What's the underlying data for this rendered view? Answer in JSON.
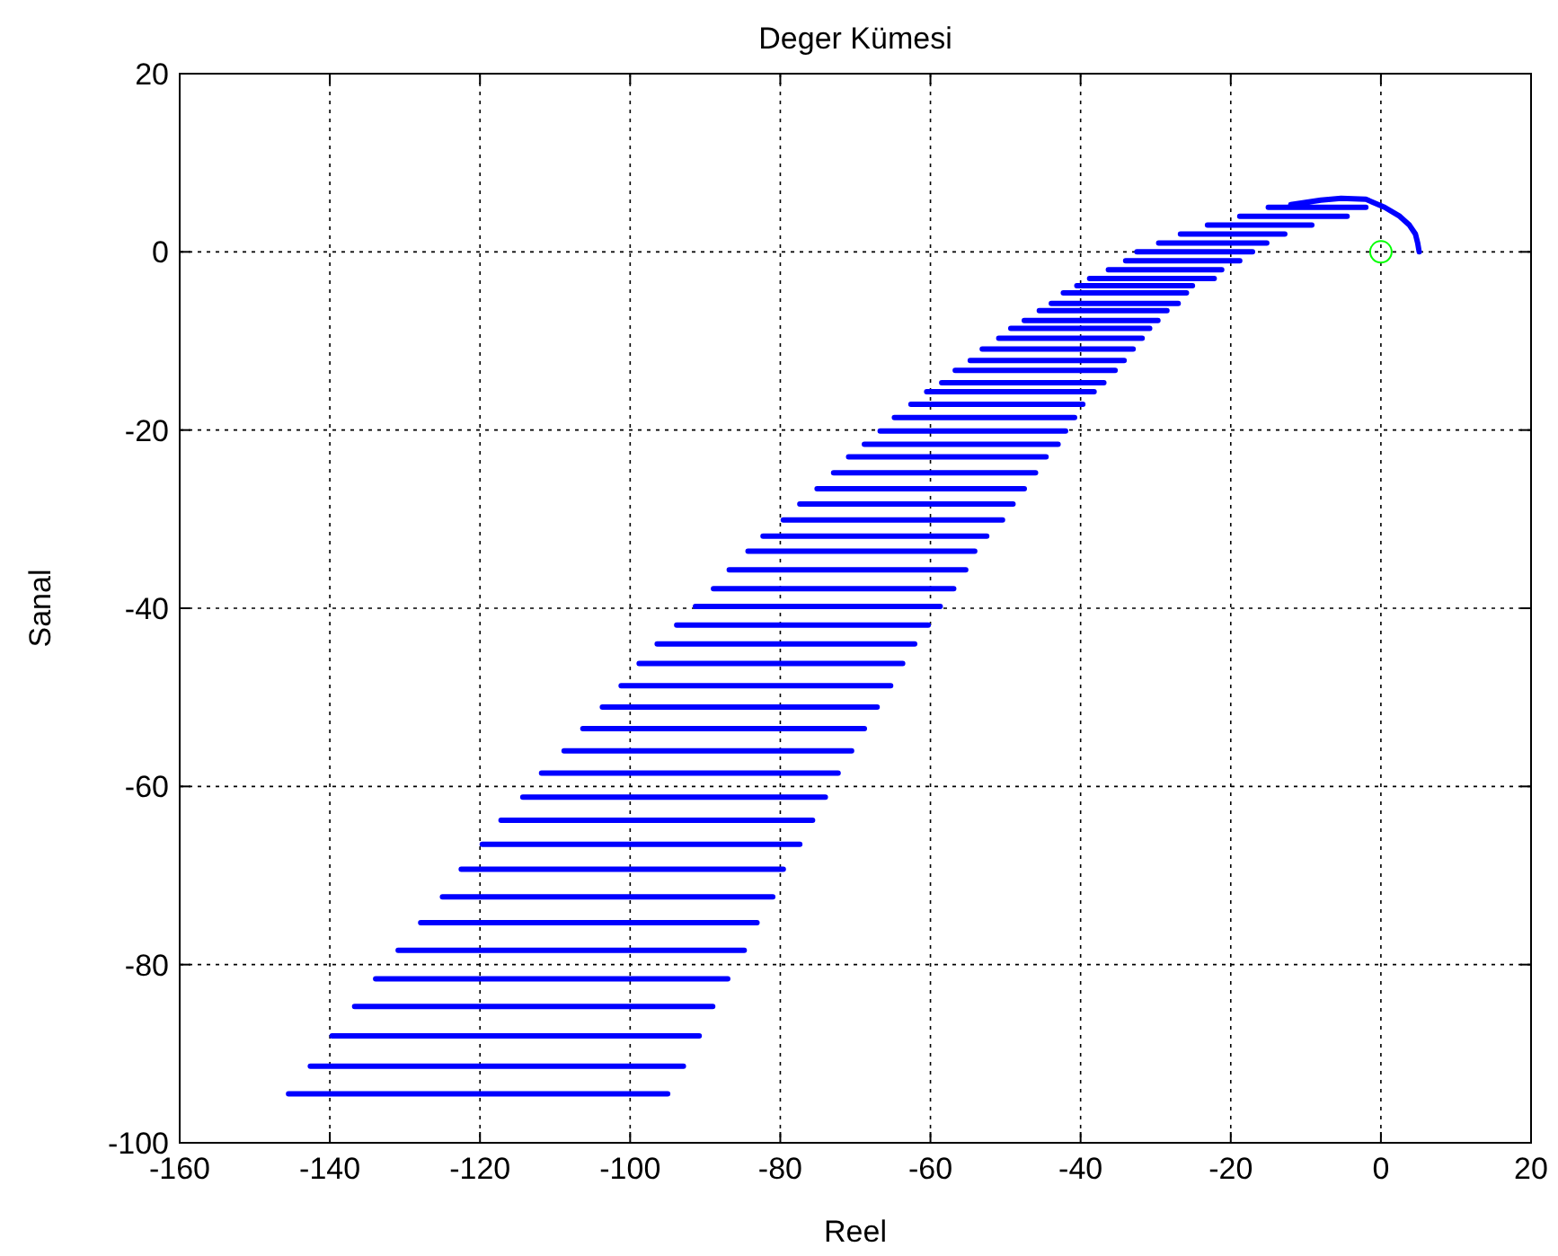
{
  "chart_data": {
    "type": "line",
    "title": "Deger Kümesi",
    "xlabel": "Reel",
    "ylabel": "Sanal",
    "xlim": [
      -160,
      20
    ],
    "ylim": [
      -100,
      20
    ],
    "xticks": [
      -160,
      -140,
      -120,
      -100,
      -80,
      -60,
      -40,
      -20,
      0,
      20
    ],
    "yticks": [
      -100,
      -80,
      -60,
      -40,
      -20,
      0,
      20
    ],
    "grid": true,
    "line_style": "solid",
    "series": [
      {
        "color": "#0000ff",
        "x": [
          -145.5,
          -95.0,
          null,
          -142.6,
          -92.9,
          null,
          -139.7,
          -90.8,
          null,
          -136.7,
          -89.0,
          null,
          -133.9,
          -87.0,
          null,
          -130.9,
          -84.8,
          null,
          -127.9,
          -83.1,
          null,
          -125.0,
          -81.0,
          null,
          -122.5,
          -79.6,
          null,
          -119.7,
          -77.4,
          null,
          -117.2,
          -75.7,
          null,
          -114.3,
          -74.0,
          null,
          -111.8,
          -72.3,
          null,
          -108.8,
          -70.5,
          null,
          -106.3,
          -68.8,
          null,
          -103.7,
          -67.1,
          null,
          -101.2,
          -65.3,
          null,
          -98.8,
          -63.7,
          null,
          -96.4,
          -62.1,
          null,
          -93.8,
          -60.3,
          null,
          -91.3,
          -58.7,
          null,
          -88.9,
          -56.9,
          null,
          -86.8,
          -55.3,
          null,
          -84.3,
          -54.1,
          null,
          -82.3,
          -52.5,
          null,
          -79.6,
          -50.4,
          null,
          -77.4,
          -49.0,
          null,
          -75.1,
          -47.5,
          null,
          -72.9,
          -46.0,
          null,
          -70.9,
          -44.6,
          null,
          -68.8,
          -43.0,
          null,
          -66.7,
          -42.0,
          null,
          -64.8,
          -40.8,
          null,
          -62.6,
          -39.7,
          null,
          -60.5,
          -38.2,
          null,
          -58.5,
          -36.9,
          null,
          -56.7,
          -35.4,
          null,
          -54.7,
          -34.2,
          null,
          -53.1,
          -33.0,
          null,
          -50.9,
          -31.8,
          null,
          -49.3,
          -30.8,
          null,
          -47.5,
          -29.7,
          null,
          -45.5,
          -28.5,
          null,
          -43.9,
          -27.0,
          null,
          -42.3,
          -25.9,
          null,
          -40.5,
          -25.1,
          null,
          -38.8,
          -22.2,
          null,
          -36.3,
          -21.2,
          null,
          -34.0,
          -18.8,
          null,
          -32.5,
          -17.1,
          null,
          -29.6,
          -15.2,
          null,
          -26.7,
          -12.8,
          null,
          -23.1,
          -9.2,
          null,
          -18.8,
          -4.5,
          null,
          -15.0,
          -2.0,
          null,
          -12.0,
          -8.0,
          -5.3,
          -2.0,
          0.5,
          2.5,
          3.8,
          4.6,
          4.9,
          5.1
        ],
        "values": [
          -94.5,
          -94.5,
          null,
          -91.4,
          -91.4,
          null,
          -88.0,
          -88.0,
          null,
          -84.7,
          -84.7,
          null,
          -81.6,
          -81.6,
          null,
          -78.4,
          -78.4,
          null,
          -75.3,
          -75.3,
          null,
          -72.4,
          -72.4,
          null,
          -69.3,
          -69.3,
          null,
          -66.5,
          -66.5,
          null,
          -63.8,
          -63.8,
          null,
          -61.2,
          -61.2,
          null,
          -58.5,
          -58.5,
          null,
          -56.0,
          -56.0,
          null,
          -53.5,
          -53.5,
          null,
          -51.1,
          -51.1,
          null,
          -48.7,
          -48.7,
          null,
          -46.2,
          -46.2,
          null,
          -44.0,
          -44.0,
          null,
          -41.9,
          -41.9,
          null,
          -39.8,
          -39.8,
          null,
          -37.8,
          -37.8,
          null,
          -35.7,
          -35.7,
          null,
          -33.6,
          -33.6,
          null,
          -31.9,
          -31.9,
          null,
          -30.1,
          -30.1,
          null,
          -28.3,
          -28.3,
          null,
          -26.6,
          -26.6,
          null,
          -24.8,
          -24.8,
          null,
          -23.0,
          -23.0,
          null,
          -21.6,
          -21.6,
          null,
          -20.1,
          -20.1,
          null,
          -18.6,
          -18.6,
          null,
          -17.1,
          -17.1,
          null,
          -15.7,
          -15.7,
          null,
          -14.7,
          -14.7,
          null,
          -13.3,
          -13.3,
          null,
          -12.2,
          -12.2,
          null,
          -10.9,
          -10.9,
          null,
          -9.7,
          -9.7,
          null,
          -8.6,
          -8.6,
          null,
          -7.7,
          -7.7,
          null,
          -6.6,
          -6.6,
          null,
          -5.8,
          -5.8,
          null,
          -4.6,
          -4.6,
          null,
          -3.8,
          -3.8,
          null,
          -3.0,
          -3.0,
          null,
          -2.0,
          -2.0,
          null,
          -1.0,
          -1.0,
          null,
          0,
          0,
          null,
          1,
          1,
          null,
          2,
          2,
          null,
          3,
          3,
          null,
          4,
          4,
          null,
          5,
          5,
          null,
          5.3,
          5.8,
          6.0,
          5.9,
          5.0,
          4.0,
          3.0,
          2.0,
          1.0,
          0
        ]
      },
      {
        "type": "scatter",
        "color": "#00ff00",
        "marker": "circle",
        "x": [
          0
        ],
        "values": [
          0
        ]
      }
    ]
  }
}
